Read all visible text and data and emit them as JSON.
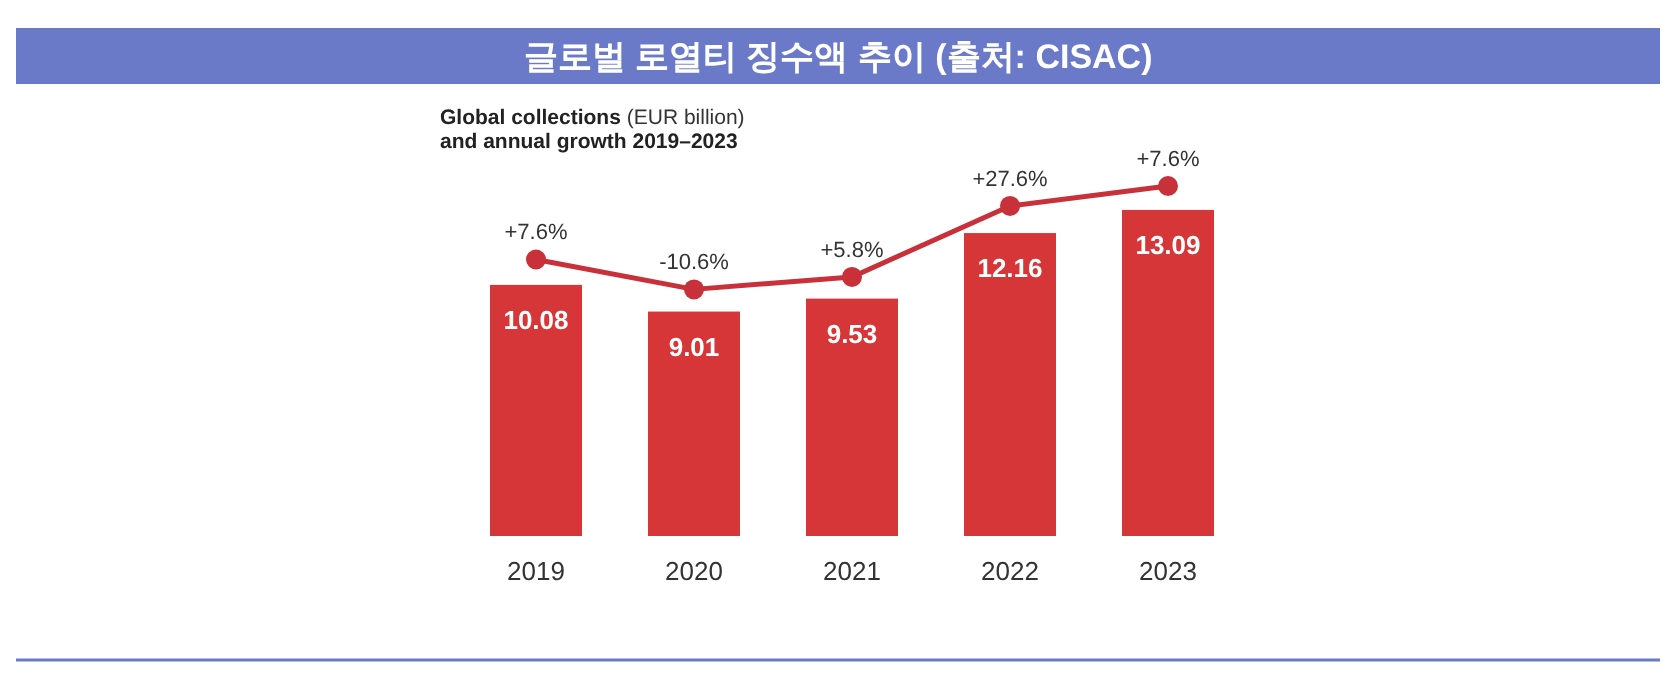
{
  "chart_data": {
    "type": "bar",
    "title": "글로벌 로열티 징수액 추이 (출처: CISAC)",
    "subtitle": "**Global collections** (EUR billion) **and annual growth 2019–2023**",
    "categories": [
      "2019",
      "2020",
      "2021",
      "2022",
      "2023"
    ],
    "series": [
      {
        "color": "#d63638",
        "values": [
          10.08,
          9.01,
          9.53,
          12.16,
          13.09
        ],
        "value_labels": [
          "10.08",
          "9.01",
          "9.53",
          "12.16",
          "13.09"
        ]
      },
      {
        "type": "line",
        "color": "#c8303a",
        "values": [
          11.1,
          9.9,
          10.4,
          13.25,
          14.05
        ]
      }
    ],
    "annotations": [
      {
        "text": "+7.6%",
        "x": "2019",
        "y": 11.1
      },
      {
        "text": "-10.6%",
        "x": "2020",
        "y": 9.9
      },
      {
        "text": "+5.8%",
        "x": "2021",
        "y": 10.4
      },
      {
        "text": "+27.6%",
        "x": "2022",
        "y": 13.25
      },
      {
        "text": "+7.6%",
        "x": "2023",
        "y": 14.05
      }
    ],
    "marker": "circle"
  }
}
